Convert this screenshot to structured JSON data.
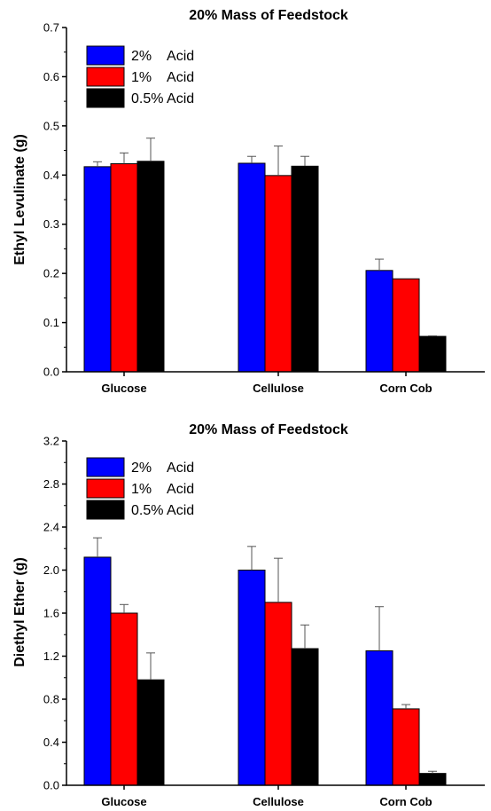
{
  "colors": {
    "s0": "#0000ff",
    "s1": "#ff0000",
    "s2": "#000000"
  },
  "chart_data": [
    {
      "type": "bar",
      "title": "20% Mass of Feedstock",
      "xlabel": "",
      "ylabel": "Ethyl Levulinate (g)",
      "ylim": [
        0,
        0.7
      ],
      "yticks": [
        0.0,
        0.1,
        0.2,
        0.3,
        0.4,
        0.5,
        0.6,
        0.7
      ],
      "ytick_labels": [
        "0.0",
        "0.1",
        "0.2",
        "0.3",
        "0.4",
        "0.5",
        "0.6",
        "0.7"
      ],
      "categories": [
        "Glucose",
        "Cellulose",
        "Corn Cob"
      ],
      "legend_position": "top-left",
      "series": [
        {
          "name": "2%    Acid",
          "values": [
            0.417,
            0.424,
            0.206
          ],
          "errors": [
            0.01,
            0.014,
            0.023
          ]
        },
        {
          "name": "1%    Acid",
          "values": [
            0.423,
            0.399,
            0.189
          ],
          "errors": [
            0.022,
            0.06,
            0.0
          ]
        },
        {
          "name": "0.5% Acid",
          "values": [
            0.428,
            0.418,
            0.072
          ],
          "errors": [
            0.047,
            0.02,
            0.001
          ]
        }
      ]
    },
    {
      "type": "bar",
      "title": "20% Mass of Feedstock",
      "xlabel": "",
      "ylabel": "Diethyl Ether (g)",
      "ylim": [
        0,
        3.2
      ],
      "yticks": [
        0.0,
        0.4,
        0.8,
        1.2,
        1.6,
        2.0,
        2.4,
        2.8,
        3.2
      ],
      "ytick_labels": [
        "0.0",
        "0.4",
        "0.8",
        "1.2",
        "1.6",
        "2.0",
        "2.4",
        "2.8",
        "3.2"
      ],
      "categories": [
        "Glucose",
        "Cellulose",
        "Corn Cob"
      ],
      "legend_position": "top-left",
      "series": [
        {
          "name": "2%    Acid",
          "values": [
            2.12,
            2.0,
            1.25
          ],
          "errors": [
            0.18,
            0.22,
            0.41
          ]
        },
        {
          "name": "1%    Acid",
          "values": [
            1.6,
            1.7,
            0.71
          ],
          "errors": [
            0.08,
            0.41,
            0.04
          ]
        },
        {
          "name": "0.5% Acid",
          "values": [
            0.98,
            1.27,
            0.11
          ],
          "errors": [
            0.25,
            0.22,
            0.02
          ]
        }
      ]
    }
  ]
}
